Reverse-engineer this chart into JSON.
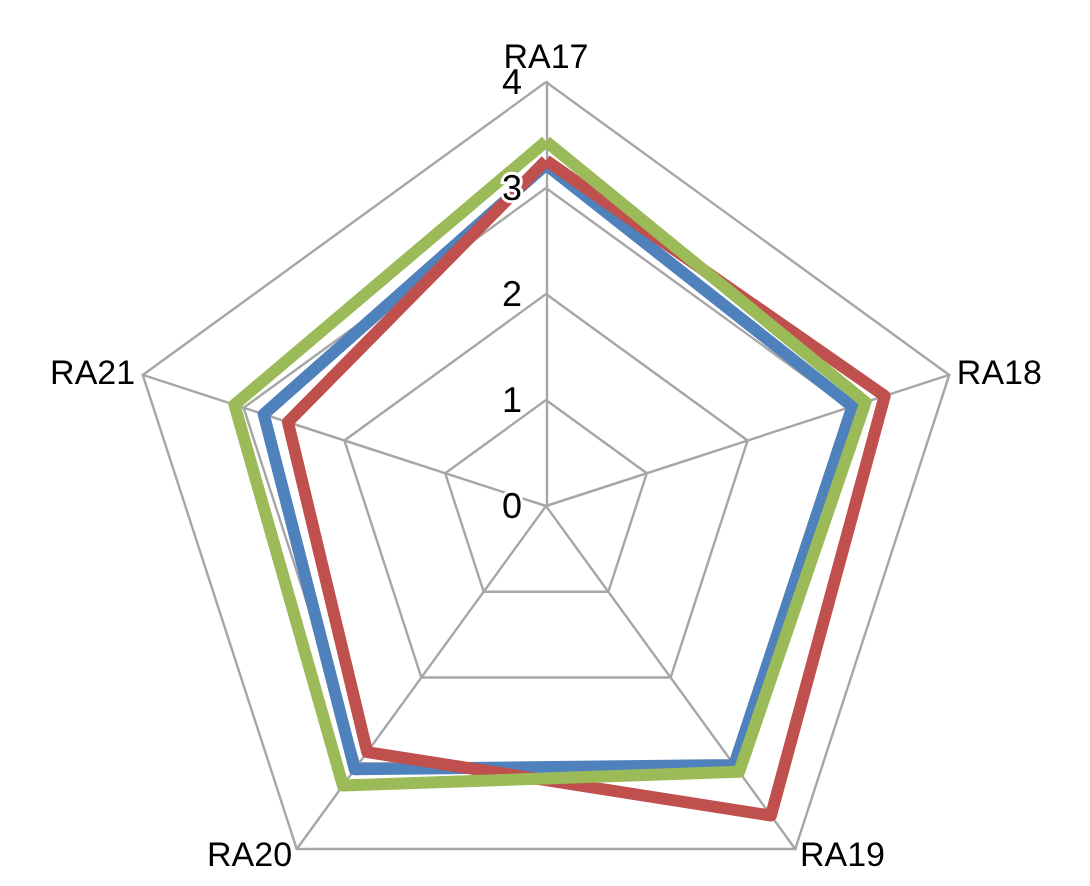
{
  "chart_data": {
    "type": "radar",
    "categories": [
      "RA17",
      "RA18",
      "RA19",
      "RA20",
      "RA21"
    ],
    "series": [
      {
        "color": "#4f81bd",
        "values": [
          3.22,
          3.04,
          3.02,
          3.07,
          2.8
        ]
      },
      {
        "color": "#c0504d",
        "values": [
          3.26,
          3.36,
          3.61,
          2.87,
          2.56
        ]
      },
      {
        "color": "#9bbb59",
        "values": [
          3.44,
          3.17,
          3.1,
          3.26,
          3.09
        ]
      }
    ],
    "ylim": [
      0,
      4
    ],
    "yticks": [
      0,
      1,
      2,
      3,
      4
    ],
    "grid": true,
    "marker": "none",
    "line_style": "solid"
  }
}
